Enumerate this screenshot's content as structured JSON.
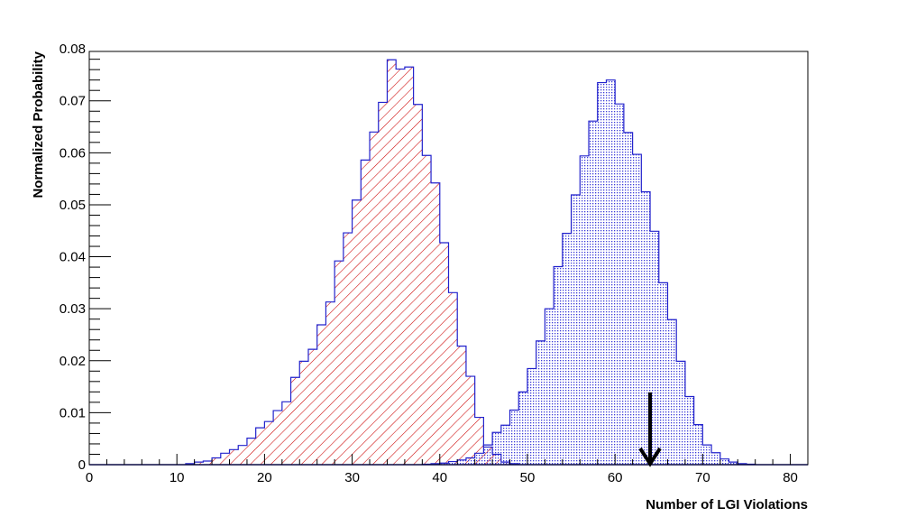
{
  "chart_data": {
    "type": "histogram",
    "xlabel": "Number of LGI Violations",
    "ylabel": "Normalized Probability",
    "xlim": [
      0,
      82
    ],
    "ylim": [
      0,
      0.0795
    ],
    "x_ticks": [
      0,
      10,
      20,
      30,
      40,
      50,
      60,
      70,
      80
    ],
    "y_ticks": [
      0,
      0.01,
      0.02,
      0.03,
      0.04,
      0.05,
      0.06,
      0.07,
      0.08
    ],
    "y_tick_labels": [
      "0",
      "0.01",
      "0.02",
      "0.03",
      "0.04",
      "0.05",
      "0.06",
      "0.07",
      "0.08"
    ],
    "bin_width": 1,
    "series": [
      {
        "fill": "hatched",
        "color": "#cc0000",
        "outline": "#2222cc",
        "bin_edges_start": 11,
        "values": [
          0.0002,
          0.0005,
          0.0007,
          0.0013,
          0.0022,
          0.0029,
          0.0037,
          0.0051,
          0.0071,
          0.0083,
          0.0104,
          0.0121,
          0.0168,
          0.0199,
          0.0222,
          0.0269,
          0.0313,
          0.0392,
          0.0446,
          0.0509,
          0.0586,
          0.064,
          0.0697,
          0.0779,
          0.0761,
          0.0765,
          0.0693,
          0.0595,
          0.0542,
          0.0427,
          0.0331,
          0.0228,
          0.017,
          0.0091,
          0.0034,
          0.002,
          0.0005,
          0.0002
        ]
      },
      {
        "fill": "dotted",
        "color": "#2222cc",
        "outline": "#2222cc",
        "bin_edges_start": 38,
        "values": [
          0.0001,
          0.0002,
          0.0003,
          0.0006,
          0.0009,
          0.0013,
          0.0022,
          0.0038,
          0.0062,
          0.0076,
          0.0105,
          0.014,
          0.0185,
          0.0238,
          0.03,
          0.0381,
          0.0445,
          0.0519,
          0.0594,
          0.0661,
          0.0735,
          0.074,
          0.0694,
          0.0639,
          0.0597,
          0.0525,
          0.0449,
          0.035,
          0.0279,
          0.0199,
          0.0131,
          0.0077,
          0.0038,
          0.0023,
          0.0011,
          0.0005,
          0.0002,
          0.0001
        ]
      }
    ],
    "annotation": {
      "type": "arrow-down",
      "x": 64,
      "y_from": 0.0139,
      "y_to": 0
    }
  }
}
